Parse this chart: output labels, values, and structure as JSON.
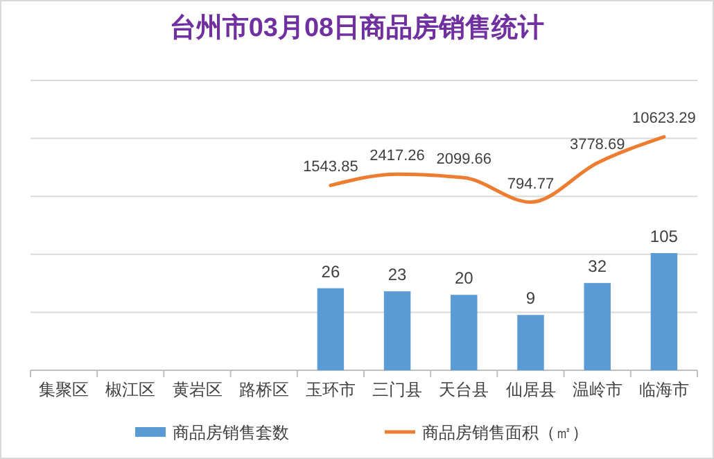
{
  "chart_data": {
    "type": "bar",
    "title": "台州市03月08日商品房销售统计",
    "categories": [
      "集聚区",
      "椒江区",
      "黄岩区",
      "路桥区",
      "玉环市",
      "三门县",
      "天台县",
      "仙居县",
      "温岭市",
      "临海市"
    ],
    "series": [
      {
        "name": "商品房销售套数",
        "color": "#5b9bd5",
        "values": [
          null,
          null,
          null,
          null,
          26,
          23,
          20,
          9,
          32,
          105
        ]
      },
      {
        "name": "商品房销售面积（㎡）",
        "type": "line",
        "color": "#ed7d31",
        "values": [
          null,
          null,
          null,
          null,
          1543.85,
          2417.26,
          2099.66,
          794.77,
          3778.69,
          10623.29
        ]
      }
    ],
    "log": true,
    "ylim": [
      1,
      100000
    ],
    "yticks": [
      {
        "value": 1,
        "label": null
      },
      {
        "value": 10,
        "label": null
      },
      {
        "value": 100,
        "label": null
      },
      {
        "value": 1000,
        "label": null
      },
      {
        "value": 10000,
        "label": null
      },
      {
        "value": 100000,
        "label": null
      }
    ],
    "tick_labels": "x",
    "grid": "y",
    "data_labels": true,
    "legend": "bottom",
    "marker": "none",
    "line_style": "solid"
  }
}
